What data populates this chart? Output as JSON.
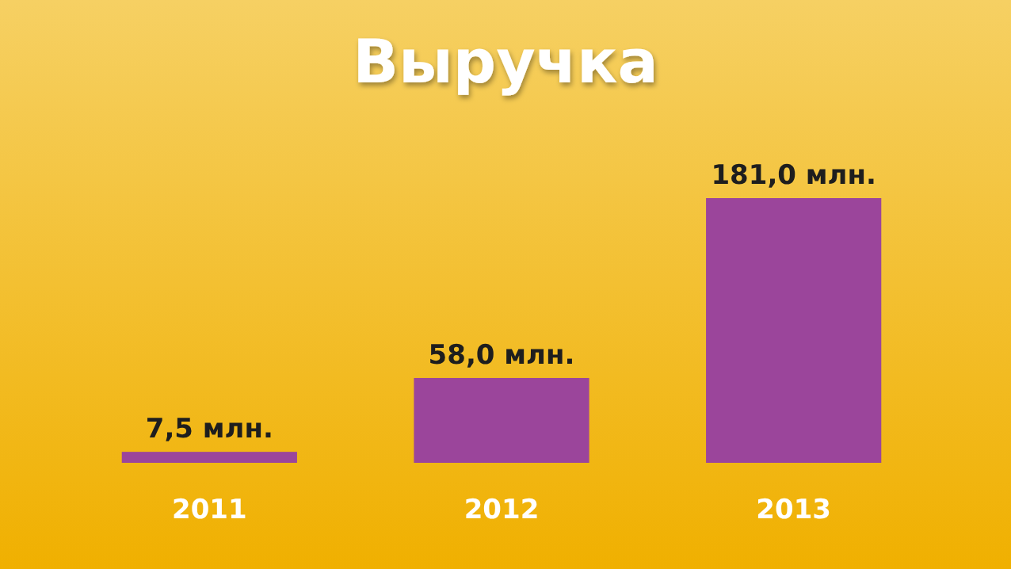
{
  "chart_data": {
    "type": "bar",
    "title": "Выручка",
    "categories": [
      "2011",
      "2012",
      "2013"
    ],
    "values": [
      7.5,
      58.0,
      181.0
    ],
    "color": "#9b459b",
    "value_labels": [
      "7,5 млн.",
      "58,0 млн.",
      "181,0 млн."
    ]
  }
}
